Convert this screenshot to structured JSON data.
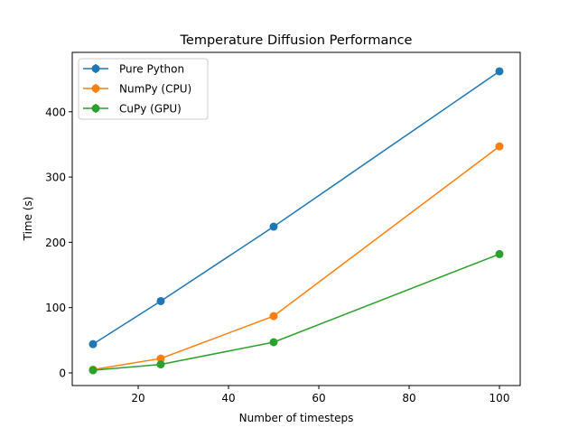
{
  "chart_data": {
    "type": "line",
    "title": "Temperature Diffusion Performance",
    "xlabel": "Number of timesteps",
    "ylabel": "Time (s)",
    "x": [
      10,
      25,
      50,
      100
    ],
    "xlim": [
      5.4,
      104.6
    ],
    "ylim": [
      -19.4,
      491
    ],
    "xticks": [
      20,
      40,
      60,
      80,
      100
    ],
    "yticks": [
      0,
      100,
      200,
      300,
      400
    ],
    "grid": false,
    "legend_position": "top-left",
    "series": [
      {
        "name": "Pure Python",
        "color": "#1f77b4",
        "values": [
          44,
          110,
          224,
          462
        ]
      },
      {
        "name": "NumPy (CPU)",
        "color": "#ff7f0e",
        "values": [
          5,
          22,
          87,
          347
        ]
      },
      {
        "name": "CuPy (GPU)",
        "color": "#2ca02c",
        "values": [
          4,
          13,
          47,
          182
        ]
      }
    ]
  }
}
